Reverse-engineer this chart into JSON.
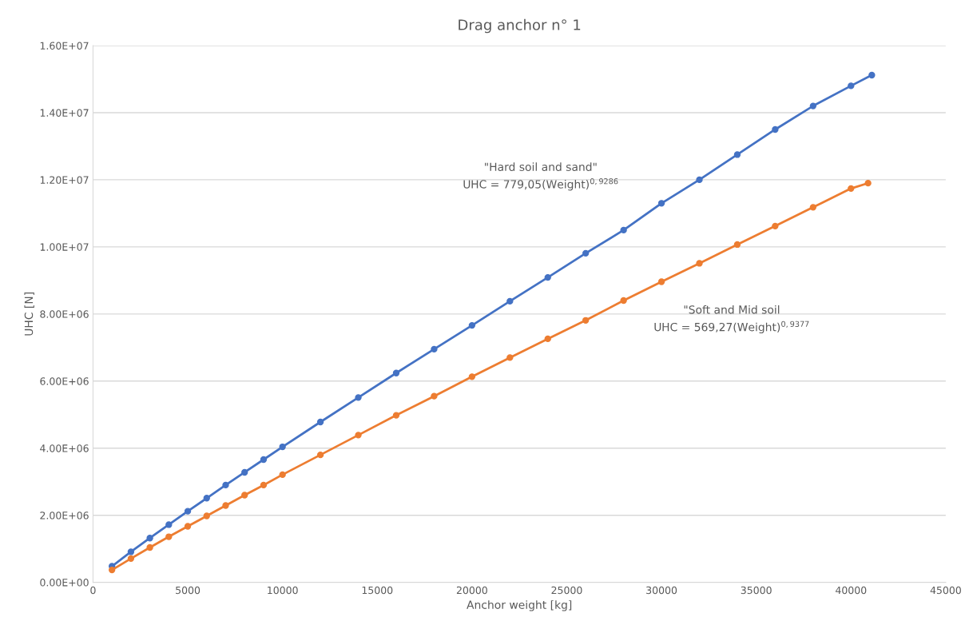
{
  "chart_data": {
    "type": "line",
    "title": "Drag anchor n° 1",
    "xlabel": "Anchor weight [kg]",
    "ylabel": "UHC [N]",
    "xlim": [
      0,
      45000
    ],
    "xticks": [
      0,
      5000,
      10000,
      15000,
      20000,
      25000,
      30000,
      35000,
      40000,
      45000
    ],
    "ylim": [
      0,
      16000000
    ],
    "yticks": [
      {
        "value": 0,
        "label": "0.00E+00"
      },
      {
        "value": 2000000,
        "label": "2.00E+06"
      },
      {
        "value": 4000000,
        "label": "4.00E+06"
      },
      {
        "value": 6000000,
        "label": "6.00E+06"
      },
      {
        "value": 8000000,
        "label": "8.00E+06"
      },
      {
        "value": 10000000,
        "label": "1.00E+07"
      },
      {
        "value": 12000000,
        "label": "1.20E+07"
      },
      {
        "value": 14000000,
        "label": "1.40E+07"
      },
      {
        "value": 16000000,
        "label": "1.60E+07"
      }
    ],
    "grid": "y",
    "marker": "circle",
    "line_style": "solid",
    "series": [
      {
        "color": "#4472c4",
        "x": [
          1000,
          2000,
          3000,
          4000,
          5000,
          6000,
          7000,
          8000,
          9000,
          10000,
          12000,
          14000,
          16000,
          18000,
          20000,
          22000,
          24000,
          26000,
          28000,
          30000,
          32000,
          34000,
          36000,
          38000,
          40000,
          41100
        ],
        "values": [
          480000,
          910000,
          1320000,
          1720000,
          2120000,
          2510000,
          2900000,
          3280000,
          3660000,
          4040000,
          4780000,
          5510000,
          6240000,
          6950000,
          7660000,
          8380000,
          9090000,
          9810000,
          10500000,
          11300000,
          12000000,
          12750000,
          13500000,
          14200000,
          14800000,
          15120000
        ]
      },
      {
        "color": "#ed7d31",
        "x": [
          1000,
          2000,
          3000,
          4000,
          5000,
          6000,
          7000,
          8000,
          9000,
          10000,
          12000,
          14000,
          16000,
          18000,
          20000,
          22000,
          24000,
          26000,
          28000,
          30000,
          32000,
          34000,
          36000,
          38000,
          40000,
          40900
        ],
        "values": [
          370000,
          710000,
          1040000,
          1360000,
          1670000,
          1980000,
          2290000,
          2600000,
          2900000,
          3210000,
          3800000,
          4390000,
          4980000,
          5550000,
          6130000,
          6700000,
          7260000,
          7810000,
          8400000,
          8960000,
          9510000,
          10070000,
          10620000,
          11180000,
          11740000,
          11900000
        ]
      }
    ],
    "annotations": [
      "\"Hard soil and sand\"\nUHC = 779,05(Weight)$^{0,9286}$",
      "\"Soft and Mid soil\nUHC = 569,27(Weight)$^{0,9377}$"
    ]
  }
}
